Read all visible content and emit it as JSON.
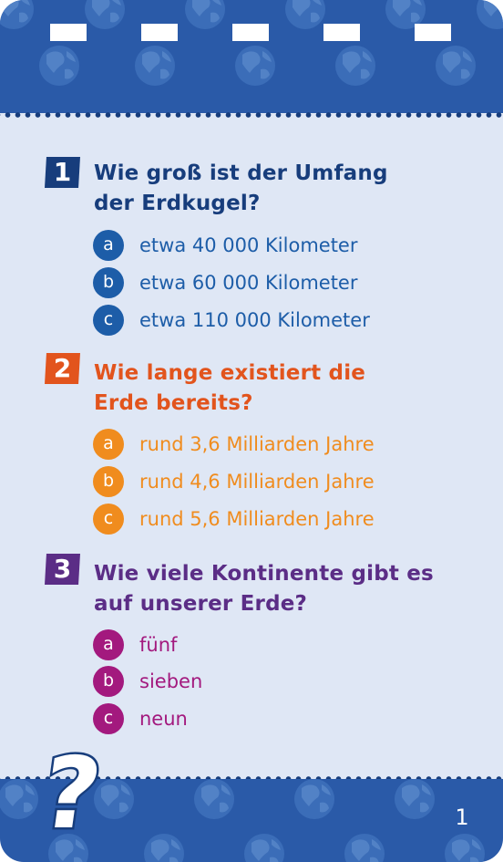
{
  "questions": [
    {
      "number": "1",
      "text_line1": "Wie groß ist der Umfang",
      "text_line2": "der Erdkugel?",
      "options": [
        {
          "letter": "a",
          "text": "etwa 40 000 Kilometer"
        },
        {
          "letter": "b",
          "text": "etwa 60 000 Kilometer"
        },
        {
          "letter": "c",
          "text": "etwa 110 000 Kilometer"
        }
      ]
    },
    {
      "number": "2",
      "text_line1": "Wie lange existiert die",
      "text_line2": "Erde bereits?",
      "options": [
        {
          "letter": "a",
          "text": "rund 3,6 Milliarden Jahre"
        },
        {
          "letter": "b",
          "text": "rund 4,6 Milliarden Jahre"
        },
        {
          "letter": "c",
          "text": "rund 5,6 Milliarden Jahre"
        }
      ]
    },
    {
      "number": "3",
      "text_line1": "Wie viele Kontinente gibt es",
      "text_line2": "auf unserer Erde?",
      "options": [
        {
          "letter": "a",
          "text": "fünf"
        },
        {
          "letter": "b",
          "text": "sieben"
        },
        {
          "letter": "c",
          "text": "neun"
        }
      ]
    }
  ],
  "footer": {
    "question_mark_glyph": "?",
    "page_number": "1"
  },
  "colors": {
    "band_blue": "#2a5aa8",
    "card_background": "#dfe7f5",
    "q1_heading": "#173d7c",
    "q1_option": "#1d5da8",
    "q2_heading": "#e2541d",
    "q2_option": "#f08c1e",
    "q3_heading": "#5b2d86",
    "q3_option": "#a3197e"
  },
  "icons": [
    "globe-icon",
    "question-mark-icon"
  ]
}
